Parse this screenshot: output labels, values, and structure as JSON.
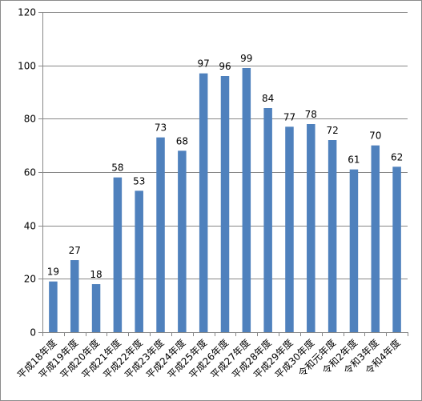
{
  "chart_data": {
    "type": "bar",
    "title": "",
    "xlabel": "",
    "ylabel": "",
    "categories": [
      "平成18年度",
      "平成19年度",
      "平成20年度",
      "平成21年度",
      "平成22年度",
      "平成23年度",
      "平成24年度",
      "平成25年度",
      "平成26年度",
      "平成27年度",
      "平成28年度",
      "平成29年度",
      "平成30年度",
      "令和元年度",
      "令和2年度",
      "令和3年度",
      "令和4年度"
    ],
    "values": [
      19,
      27,
      18,
      58,
      53,
      73,
      68,
      97,
      96,
      99,
      84,
      77,
      78,
      72,
      61,
      70,
      62
    ],
    "ylim": [
      0,
      120
    ],
    "yticks": [
      0,
      20,
      40,
      60,
      80,
      100,
      120
    ],
    "grid": true,
    "legend": "none",
    "colors": {
      "bar": "#4f81bd",
      "grid": "#878787",
      "axis": "#878787"
    }
  }
}
